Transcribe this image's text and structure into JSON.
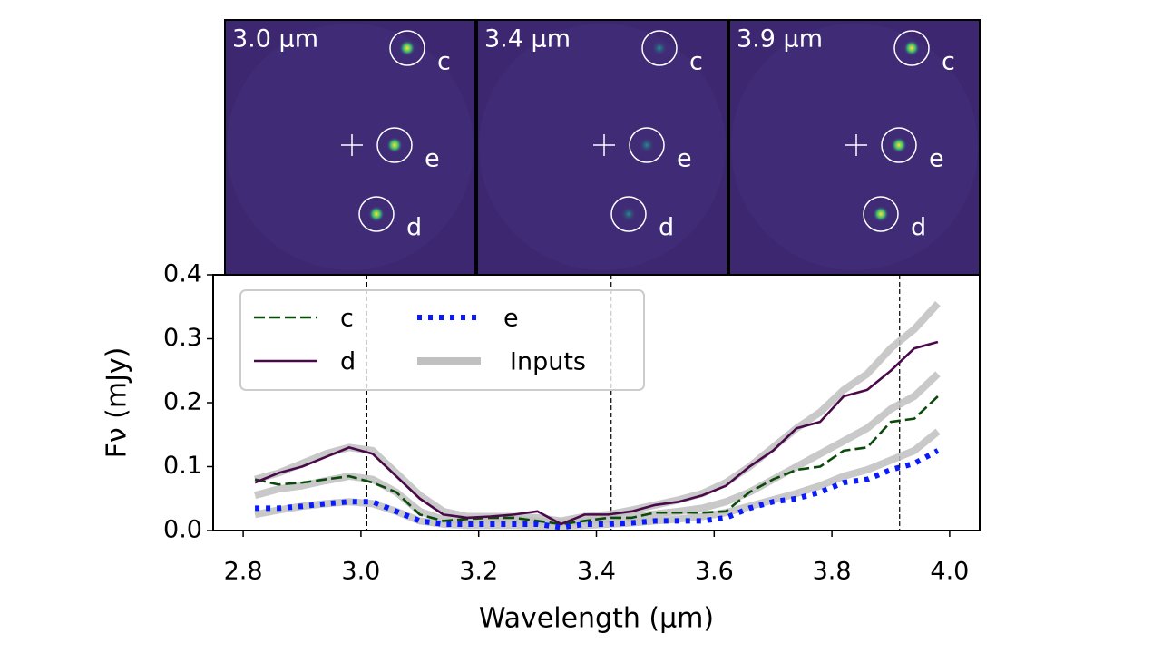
{
  "chart_data": {
    "type": "line",
    "xlabel": "Wavelength (μm)",
    "ylabel": "Fν (mJy)",
    "panels": [
      {
        "label": "3.0 μm",
        "objects": [
          "c",
          "e",
          "d"
        ]
      },
      {
        "label": "3.4 μm",
        "objects": [
          "c",
          "e",
          "d"
        ]
      },
      {
        "label": "3.9 μm",
        "objects": [
          "c",
          "e",
          "d"
        ]
      }
    ],
    "vlines": [
      3.01,
      3.425,
      3.915
    ],
    "xlim": [
      2.749,
      4.051
    ],
    "ylim": [
      0,
      0.4
    ],
    "xticks": [
      2.8,
      {
        "value": 3.0,
        "label": "3.0"
      },
      3.2,
      3.4,
      3.6,
      3.8,
      {
        "value": 4.0,
        "label": "4.0"
      }
    ],
    "yticks": [
      {
        "value": 0,
        "label": "0.0"
      },
      0.1,
      0.2,
      0.3,
      0.4
    ],
    "x": [
      2.82,
      2.86,
      2.9,
      2.94,
      2.98,
      3.02,
      3.06,
      3.1,
      3.14,
      3.18,
      3.22,
      3.26,
      3.3,
      3.34,
      3.38,
      3.42,
      3.46,
      3.5,
      3.54,
      3.58,
      3.62,
      3.66,
      3.7,
      3.74,
      3.78,
      3.82,
      3.86,
      3.9,
      3.94,
      3.98
    ],
    "inputs": {
      "name": "Inputs",
      "color": "#c0c0c0",
      "curves": [
        [
          0.08,
          0.09,
          0.105,
          0.12,
          0.13,
          0.125,
          0.09,
          0.055,
          0.03,
          0.022,
          0.022,
          0.022,
          0.02,
          0.015,
          0.022,
          0.025,
          0.032,
          0.04,
          0.048,
          0.058,
          0.075,
          0.1,
          0.13,
          0.16,
          0.185,
          0.22,
          0.245,
          0.285,
          0.315,
          0.355
        ],
        [
          0.055,
          0.065,
          0.07,
          0.078,
          0.085,
          0.08,
          0.06,
          0.03,
          0.017,
          0.017,
          0.018,
          0.018,
          0.015,
          0.012,
          0.015,
          0.018,
          0.022,
          0.026,
          0.03,
          0.035,
          0.045,
          0.06,
          0.08,
          0.1,
          0.12,
          0.14,
          0.16,
          0.19,
          0.21,
          0.245
        ],
        [
          0.025,
          0.032,
          0.038,
          0.042,
          0.045,
          0.042,
          0.03,
          0.015,
          0.01,
          0.008,
          0.008,
          0.008,
          0.007,
          0.007,
          0.008,
          0.01,
          0.012,
          0.015,
          0.018,
          0.022,
          0.028,
          0.038,
          0.048,
          0.058,
          0.07,
          0.085,
          0.095,
          0.11,
          0.125,
          0.155
        ]
      ]
    },
    "series": [
      {
        "name": "c",
        "color": "#0b4a0b",
        "dash": "dashed",
        "values": [
          0.08,
          0.072,
          0.075,
          0.08,
          0.085,
          0.075,
          0.06,
          0.025,
          0.015,
          0.018,
          0.02,
          0.02,
          0.015,
          0.01,
          0.015,
          0.02,
          0.02,
          0.028,
          0.028,
          0.028,
          0.03,
          0.06,
          0.08,
          0.095,
          0.1,
          0.125,
          0.13,
          0.17,
          0.175,
          0.21
        ]
      },
      {
        "name": "d",
        "color": "#4a0a4a",
        "dash": "solid",
        "values": [
          0.075,
          0.09,
          0.1,
          0.115,
          0.13,
          0.12,
          0.085,
          0.05,
          0.025,
          0.02,
          0.022,
          0.025,
          0.03,
          0.01,
          0.025,
          0.025,
          0.03,
          0.04,
          0.045,
          0.055,
          0.07,
          0.1,
          0.125,
          0.16,
          0.17,
          0.21,
          0.22,
          0.25,
          0.285,
          0.295
        ]
      },
      {
        "name": "e",
        "color": "#0a1aff",
        "dash": "dotted",
        "values": [
          0.035,
          0.035,
          0.038,
          0.042,
          0.045,
          0.045,
          0.03,
          0.015,
          0.01,
          0.01,
          0.01,
          0.01,
          0.01,
          0.005,
          0.01,
          0.01,
          0.012,
          0.015,
          0.015,
          0.015,
          0.02,
          0.035,
          0.045,
          0.05,
          0.06,
          0.075,
          0.08,
          0.095,
          0.105,
          0.125
        ]
      }
    ]
  }
}
